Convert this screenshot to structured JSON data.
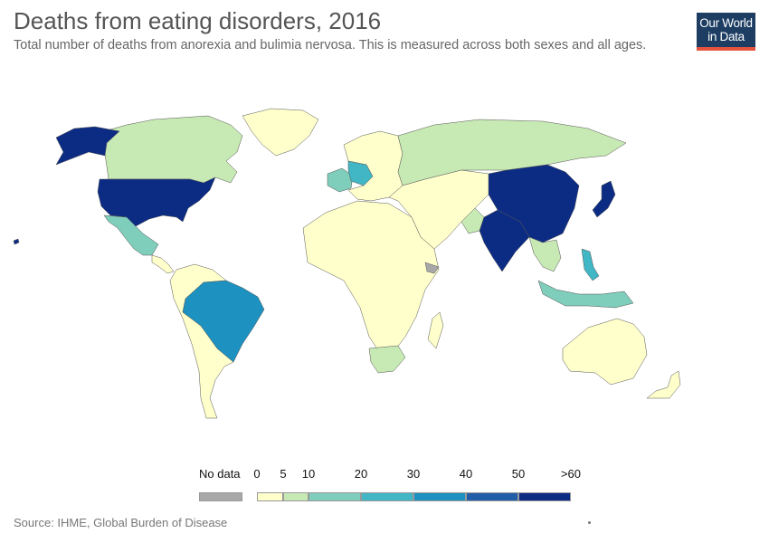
{
  "title": "Deaths from eating disorders, 2016",
  "subtitle": "Total number of deaths from anorexia and bulimia nervosa. This is measured across both sexes and all ages.",
  "logo": {
    "line1": "Our World",
    "line2": "in Data",
    "bg": "#1d3d63",
    "accent": "#e5533d"
  },
  "legend": {
    "no_data_label": "No data",
    "no_data_color": "#a8a8a8",
    "ticks": [
      "0",
      "5",
      "10",
      "20",
      "30",
      "40",
      "50",
      ">60"
    ],
    "bins": [
      {
        "from": 0,
        "to": 5,
        "color": "#ffffcc"
      },
      {
        "from": 5,
        "to": 10,
        "color": "#c7e9b4"
      },
      {
        "from": 10,
        "to": 20,
        "color": "#7fcdbb"
      },
      {
        "from": 20,
        "to": 30,
        "color": "#41b6c4"
      },
      {
        "from": 30,
        "to": 40,
        "color": "#1d91c0"
      },
      {
        "from": 40,
        "to": 50,
        "color": "#225ea8"
      },
      {
        "from": 50,
        "to": 60,
        "color": "#0c2c84"
      }
    ]
  },
  "regions": [
    {
      "name": "Canada",
      "color": "#c7e9b4"
    },
    {
      "name": "United States",
      "color": "#0c2c84"
    },
    {
      "name": "Alaska",
      "color": "#0c2c84"
    },
    {
      "name": "Greenland",
      "color": "#ffffcc"
    },
    {
      "name": "Mexico",
      "color": "#7fcdbb"
    },
    {
      "name": "Central America",
      "color": "#ffffcc"
    },
    {
      "name": "Brazil",
      "color": "#1d91c0"
    },
    {
      "name": "South America (other)",
      "color": "#ffffcc"
    },
    {
      "name": "Europe (other)",
      "color": "#ffffcc"
    },
    {
      "name": "France",
      "color": "#7fcdbb"
    },
    {
      "name": "Germany",
      "color": "#41b6c4"
    },
    {
      "name": "Russia",
      "color": "#c7e9b4"
    },
    {
      "name": "Africa",
      "color": "#ffffcc"
    },
    {
      "name": "South Africa",
      "color": "#c7e9b4"
    },
    {
      "name": "Somalia",
      "color": "#a8a8a8"
    },
    {
      "name": "Madagascar",
      "color": "#ffffcc"
    },
    {
      "name": "Middle East & Central Asia",
      "color": "#ffffcc"
    },
    {
      "name": "Pakistan",
      "color": "#c7e9b4"
    },
    {
      "name": "India",
      "color": "#0c2c84"
    },
    {
      "name": "China",
      "color": "#0c2c84"
    },
    {
      "name": "Japan",
      "color": "#0c2c84"
    },
    {
      "name": "Southeast Asia",
      "color": "#c7e9b4"
    },
    {
      "name": "Philippines",
      "color": "#41b6c4"
    },
    {
      "name": "Indonesia",
      "color": "#7fcdbb"
    },
    {
      "name": "Australia",
      "color": "#ffffcc"
    },
    {
      "name": "New Zealand",
      "color": "#ffffcc"
    }
  ],
  "source": "Source: IHME, Global Burden of Disease"
}
